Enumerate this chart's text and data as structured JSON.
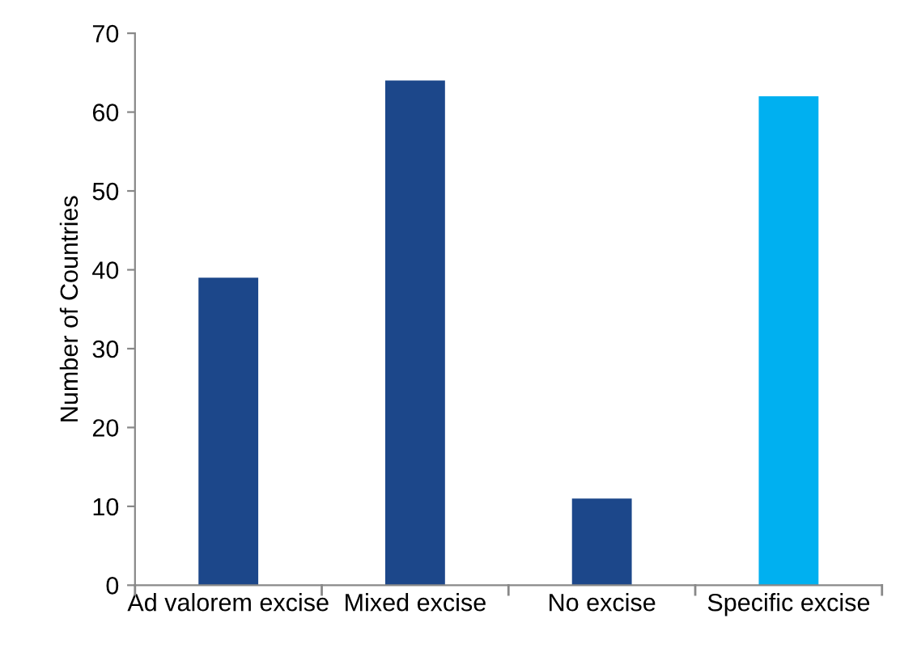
{
  "chart_data": {
    "type": "bar",
    "ylabel": "Number of Countries",
    "categories": [
      "Ad valorem excise",
      "Mixed excise",
      "No excise",
      "Specific excise"
    ],
    "values": [
      39,
      64,
      11,
      62
    ],
    "colors": [
      "#1c478a",
      "#1c478a",
      "#1c478a",
      "#00b0f0"
    ],
    "ylim": [
      0,
      70
    ],
    "yticks": [
      0,
      10,
      20,
      30,
      40,
      50,
      60,
      70
    ],
    "grid": false,
    "legend": false
  }
}
